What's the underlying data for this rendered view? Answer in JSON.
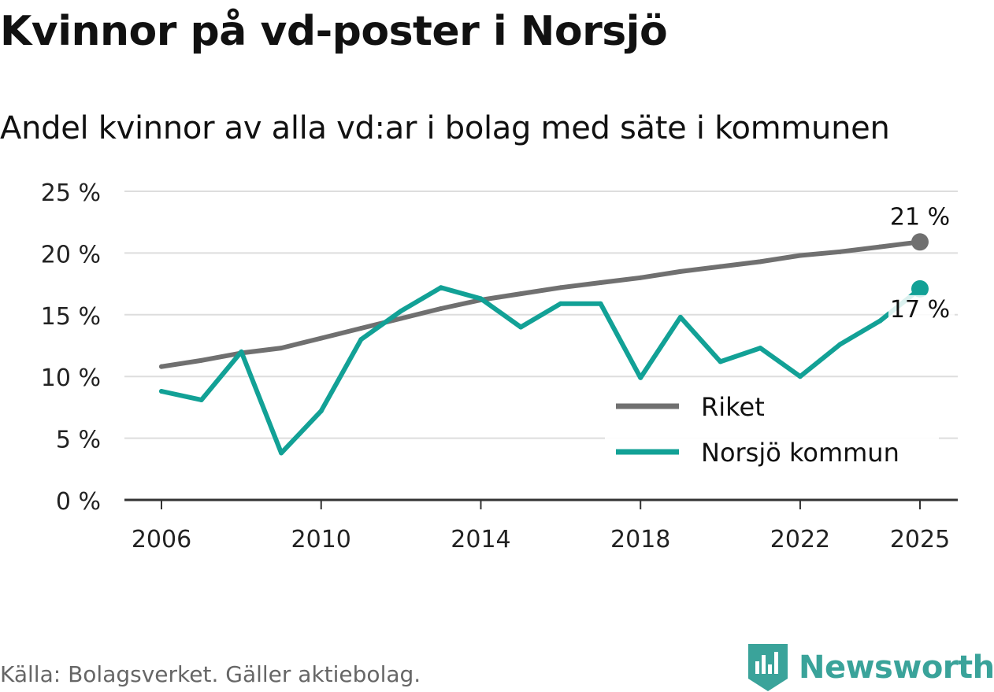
{
  "title": "Kvinnor på vd-poster i Norsjö",
  "subtitle": "Andel kvinnor av alla vd:ar i bolag med säte i kommunen",
  "source": "Källa: Bolagsverket. Gäller aktiebolag.",
  "brand": "Newsworthy",
  "colors": {
    "riket": "#707070",
    "norsjo": "#12a196",
    "grid": "#dddddd",
    "axis": "#333333"
  },
  "chart_data": {
    "type": "line",
    "title": "Kvinnor på vd-poster i Norsjö",
    "subtitle": "Andel kvinnor av alla vd:ar i bolag med säte i kommunen",
    "xlabel": "",
    "ylabel": "",
    "ylim": [
      0,
      25
    ],
    "xlim": [
      2006,
      2025
    ],
    "y_ticks": [
      0,
      5,
      10,
      15,
      20,
      25
    ],
    "y_tick_labels": [
      "0 %",
      "5 %",
      "10 %",
      "15 %",
      "20 %",
      "25 %"
    ],
    "x_ticks": [
      2006,
      2010,
      2014,
      2018,
      2022,
      2025
    ],
    "x_tick_labels": [
      "2006",
      "2010",
      "2014",
      "2018",
      "2022",
      "2025"
    ],
    "grid": true,
    "legend_position": "bottom-right",
    "x": [
      2006,
      2007,
      2008,
      2009,
      2010,
      2011,
      2012,
      2013,
      2014,
      2015,
      2016,
      2017,
      2018,
      2019,
      2020,
      2021,
      2022,
      2023,
      2024,
      2025
    ],
    "series": [
      {
        "name": "Riket",
        "color": "#707070",
        "values": [
          10.8,
          11.3,
          11.9,
          12.3,
          13.1,
          13.9,
          14.7,
          15.5,
          16.2,
          16.7,
          17.2,
          17.6,
          18.0,
          18.5,
          18.9,
          19.3,
          19.8,
          20.1,
          20.5,
          20.9
        ],
        "end_label": "21 %"
      },
      {
        "name": "Norsjö kommun",
        "color": "#12a196",
        "values": [
          8.8,
          8.1,
          12.0,
          3.8,
          7.2,
          13.0,
          15.3,
          17.2,
          16.3,
          14.0,
          15.9,
          15.9,
          9.9,
          14.8,
          11.2,
          12.3,
          10.0,
          12.6,
          14.5,
          17.1
        ],
        "end_label": "17 %"
      }
    ]
  }
}
